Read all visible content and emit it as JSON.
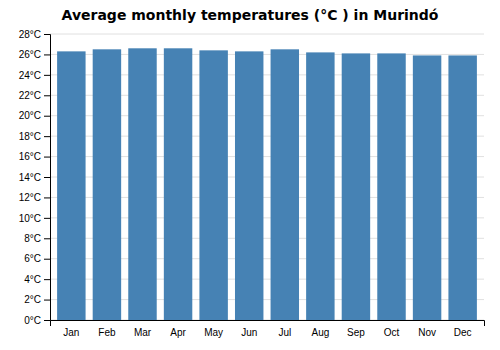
{
  "chart_data": {
    "type": "bar",
    "title": "Average monthly temperatures (°C ) in Murindó",
    "categories": [
      "Jan",
      "Feb",
      "Mar",
      "Apr",
      "May",
      "Jun",
      "Jul",
      "Aug",
      "Sep",
      "Oct",
      "Nov",
      "Dec"
    ],
    "values": [
      26.3,
      26.5,
      26.6,
      26.6,
      26.4,
      26.3,
      26.5,
      26.2,
      26.1,
      26.1,
      25.9,
      25.9
    ],
    "ylim": [
      0,
      28
    ],
    "yticks": [
      {
        "value": 0,
        "label": "0°C"
      },
      {
        "value": 2,
        "label": "2°C"
      },
      {
        "value": 4,
        "label": "4°C"
      },
      {
        "value": 6,
        "label": "6°C"
      },
      {
        "value": 8,
        "label": "8°C"
      },
      {
        "value": 10,
        "label": "10°C"
      },
      {
        "value": 12,
        "label": "12°C"
      },
      {
        "value": 14,
        "label": "14°C"
      },
      {
        "value": 16,
        "label": "16°C"
      },
      {
        "value": 18,
        "label": "18°C"
      },
      {
        "value": 20,
        "label": "20°C"
      },
      {
        "value": 22,
        "label": "22°C"
      },
      {
        "value": 24,
        "label": "24°C"
      },
      {
        "value": 26,
        "label": "26°C"
      },
      {
        "value": 28,
        "label": "28°C"
      }
    ],
    "grid": true
  }
}
